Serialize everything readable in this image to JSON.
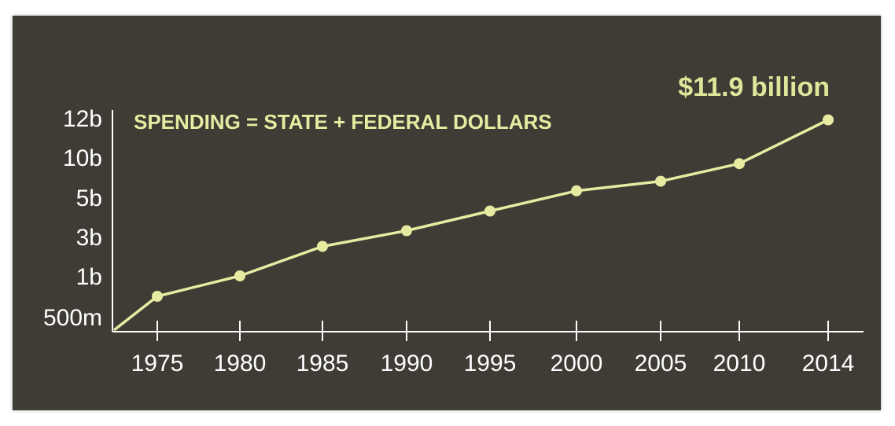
{
  "chart_data": {
    "type": "line",
    "title": "",
    "subtitle": "SPENDING = STATE + FEDERAL DOLLARS",
    "callout": "$11.9 billion",
    "xlabel": "",
    "ylabel": "",
    "x_ticks": [
      "1975",
      "1980",
      "1985",
      "1990",
      "1995",
      "2000",
      "2005",
      "2010",
      "2014"
    ],
    "y_ticks": [
      "12b",
      "10b",
      "5b",
      "3b",
      "1b",
      "500m"
    ],
    "y_tick_values_billions": [
      12,
      10,
      5,
      3,
      1,
      0.5
    ],
    "series": [
      {
        "x": [
          1975,
          1980,
          1985,
          1990,
          1995,
          2000,
          2005,
          2010,
          2014
        ],
        "values": [
          0.75,
          1.0,
          2.5,
          3.3,
          4.3,
          5.8,
          7.0,
          9.2,
          11.9
        ]
      }
    ],
    "grid": false,
    "legend": "none",
    "colors": {
      "background": "#3e3c35",
      "line": "#e7eba2",
      "axis": "#ffffff",
      "text": "#ffffff",
      "accent_text": "#dfe69a"
    }
  }
}
